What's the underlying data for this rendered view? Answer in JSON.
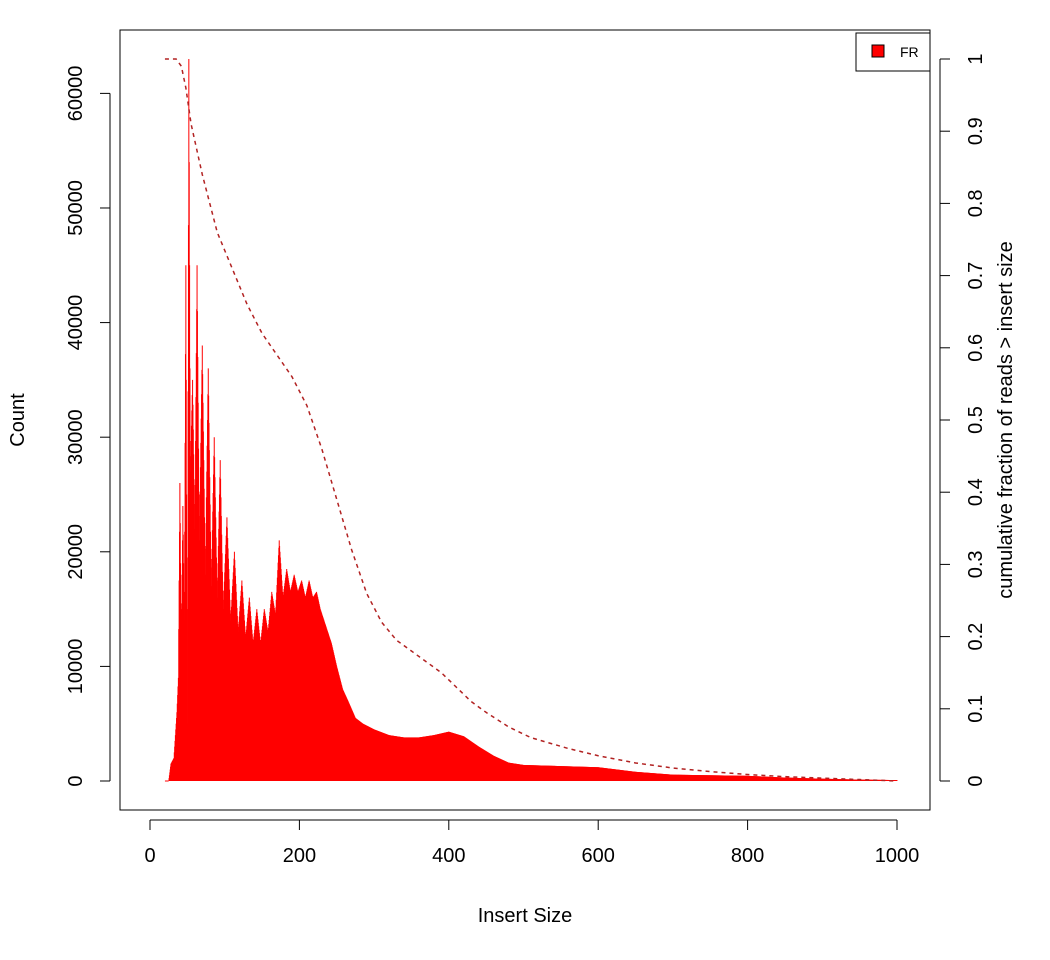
{
  "chart_data": {
    "type": "bar",
    "xlabel": "Insert Size",
    "ylabel": "Count",
    "y2label": "cumulative fraction of reads > insert size",
    "xlim": [
      0,
      1000
    ],
    "ylim": [
      0,
      63000
    ],
    "y2lim": [
      0,
      1
    ],
    "x_ticks": [
      0,
      200,
      400,
      600,
      800,
      1000
    ],
    "y_ticks": [
      0,
      10000,
      20000,
      30000,
      40000,
      50000,
      60000
    ],
    "y2_ticks": [
      0,
      0.1,
      0.2,
      0.3,
      0.4,
      0.5,
      0.6,
      0.7,
      0.8,
      0.9,
      1
    ],
    "y2_tick_labels": [
      "0",
      "0.1",
      "0.2",
      "0.3",
      "0.4",
      "0.5",
      "0.6",
      "0.7",
      "0.8",
      "0.9",
      "1"
    ],
    "grid": false,
    "legend": {
      "position": "top-right",
      "entries": [
        {
          "label": "FR",
          "color": "#ff0000"
        }
      ]
    },
    "series": [
      {
        "name": "FR",
        "kind": "histogram",
        "color": "#ff0000",
        "points": [
          [
            20,
            0
          ],
          [
            25,
            0
          ],
          [
            28,
            1500
          ],
          [
            32,
            2000
          ],
          [
            36,
            6000
          ],
          [
            38,
            9000
          ],
          [
            40,
            26000
          ],
          [
            42,
            12000
          ],
          [
            44,
            24000
          ],
          [
            46,
            14000
          ],
          [
            48,
            45000
          ],
          [
            50,
            5000
          ],
          [
            52,
            63000
          ],
          [
            54,
            27000
          ],
          [
            57,
            35000
          ],
          [
            60,
            22000
          ],
          [
            63,
            45000
          ],
          [
            66,
            21000
          ],
          [
            70,
            38000
          ],
          [
            74,
            18000
          ],
          [
            78,
            36000
          ],
          [
            82,
            17000
          ],
          [
            86,
            30000
          ],
          [
            90,
            16000
          ],
          [
            94,
            28000
          ],
          [
            98,
            15000
          ],
          [
            103,
            23000
          ],
          [
            108,
            14000
          ],
          [
            113,
            20000
          ],
          [
            118,
            13000
          ],
          [
            123,
            17500
          ],
          [
            128,
            12500
          ],
          [
            133,
            16000
          ],
          [
            138,
            12000
          ],
          [
            143,
            15000
          ],
          [
            148,
            12000
          ],
          [
            153,
            15000
          ],
          [
            158,
            13000
          ],
          [
            163,
            16500
          ],
          [
            168,
            14500
          ],
          [
            173,
            21000
          ],
          [
            178,
            16000
          ],
          [
            183,
            18500
          ],
          [
            188,
            16500
          ],
          [
            193,
            18000
          ],
          [
            198,
            16500
          ],
          [
            203,
            17500
          ],
          [
            208,
            16000
          ],
          [
            213,
            17500
          ],
          [
            218,
            16000
          ],
          [
            223,
            16500
          ],
          [
            228,
            15000
          ],
          [
            233,
            14000
          ],
          [
            238,
            13000
          ],
          [
            243,
            12000
          ],
          [
            250,
            10000
          ],
          [
            258,
            8000
          ],
          [
            265,
            7000
          ],
          [
            275,
            5500
          ],
          [
            285,
            5000
          ],
          [
            300,
            4500
          ],
          [
            320,
            4000
          ],
          [
            340,
            3800
          ],
          [
            360,
            3800
          ],
          [
            380,
            4000
          ],
          [
            400,
            4300
          ],
          [
            420,
            3900
          ],
          [
            440,
            3000
          ],
          [
            460,
            2200
          ],
          [
            480,
            1600
          ],
          [
            500,
            1400
          ],
          [
            550,
            1300
          ],
          [
            600,
            1200
          ],
          [
            650,
            800
          ],
          [
            700,
            550
          ],
          [
            750,
            500
          ],
          [
            800,
            450
          ],
          [
            850,
            300
          ],
          [
            900,
            200
          ],
          [
            950,
            120
          ],
          [
            1000,
            80
          ]
        ]
      },
      {
        "name": "FR",
        "kind": "cumulative",
        "color": "#b22222",
        "axis": "right",
        "points": [
          [
            20,
            1
          ],
          [
            35,
            1
          ],
          [
            42,
            0.99
          ],
          [
            48,
            0.96
          ],
          [
            55,
            0.91
          ],
          [
            70,
            0.84
          ],
          [
            90,
            0.76
          ],
          [
            110,
            0.71
          ],
          [
            130,
            0.66
          ],
          [
            150,
            0.62
          ],
          [
            170,
            0.59
          ],
          [
            190,
            0.56
          ],
          [
            210,
            0.52
          ],
          [
            230,
            0.46
          ],
          [
            250,
            0.39
          ],
          [
            270,
            0.32
          ],
          [
            290,
            0.26
          ],
          [
            310,
            0.22
          ],
          [
            330,
            0.195
          ],
          [
            350,
            0.18
          ],
          [
            370,
            0.165
          ],
          [
            390,
            0.15
          ],
          [
            410,
            0.13
          ],
          [
            430,
            0.11
          ],
          [
            450,
            0.095
          ],
          [
            480,
            0.075
          ],
          [
            510,
            0.06
          ],
          [
            560,
            0.045
          ],
          [
            600,
            0.035
          ],
          [
            650,
            0.025
          ],
          [
            700,
            0.018
          ],
          [
            750,
            0.013
          ],
          [
            800,
            0.009
          ],
          [
            850,
            0.006
          ],
          [
            900,
            0.004
          ],
          [
            950,
            0.002
          ],
          [
            1000,
            0
          ]
        ]
      }
    ]
  }
}
